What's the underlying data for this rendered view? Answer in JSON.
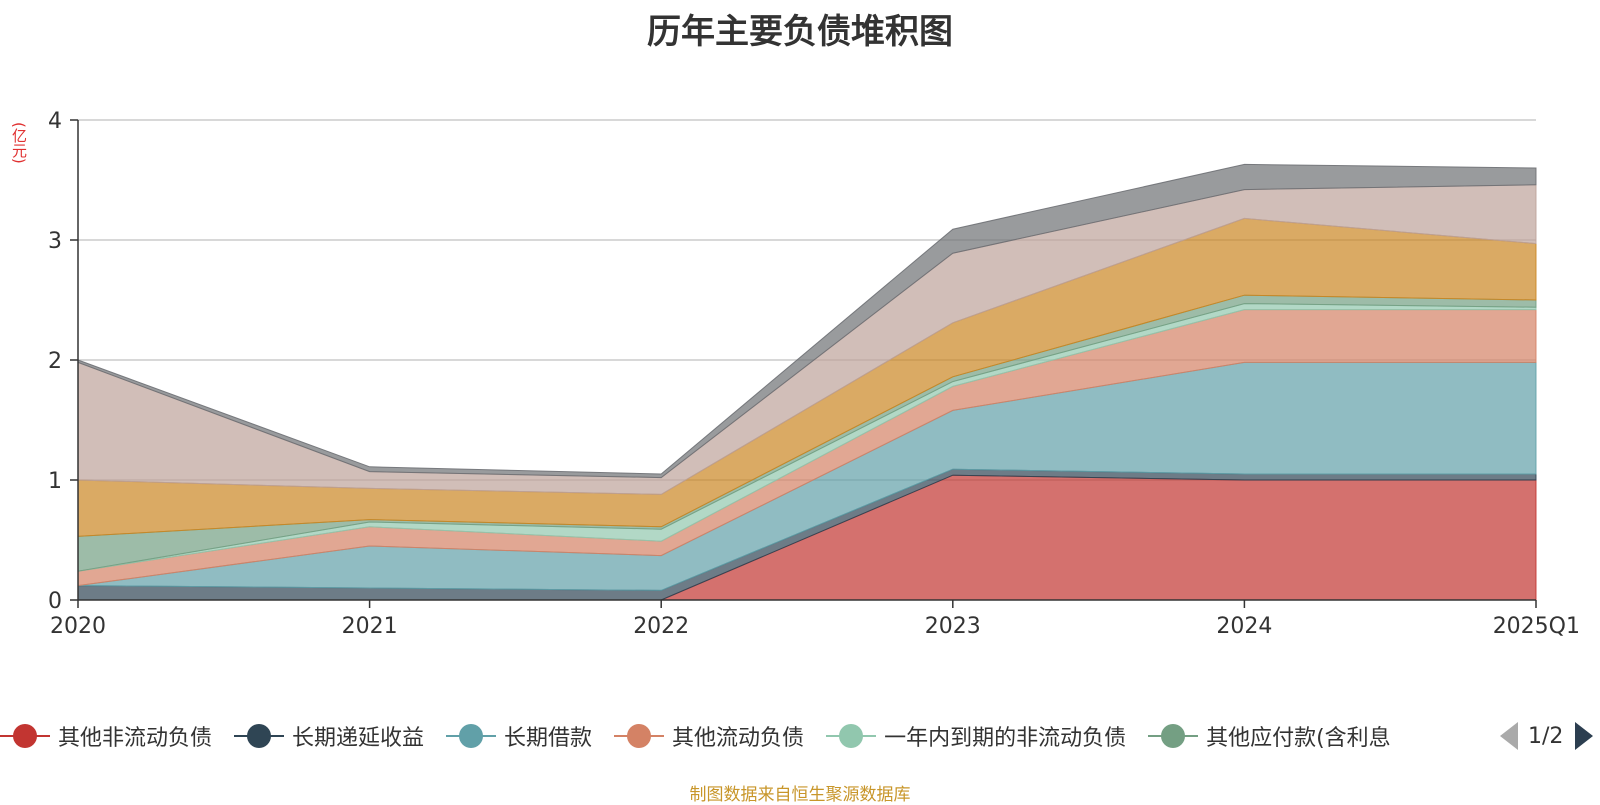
{
  "chart_data": {
    "type": "area",
    "stacked": true,
    "title": "历年主要负债堆积图",
    "unit_label": "(亿元)",
    "categories": [
      "2020",
      "2021",
      "2022",
      "2023",
      "2024",
      "2025Q1"
    ],
    "ylim": [
      0,
      4
    ],
    "yticks": [
      "0",
      "1",
      "2",
      "3",
      "4"
    ],
    "grid": true,
    "legend_position": "bottom",
    "series": [
      {
        "name": "其他非流动负债",
        "color": "#c23531",
        "values": [
          0,
          0,
          0,
          1.04,
          1.0,
          1.0
        ]
      },
      {
        "name": "长期递延收益",
        "color": "#2f4554",
        "values": [
          0.12,
          0.1,
          0.08,
          0.05,
          0.05,
          0.05
        ]
      },
      {
        "name": "长期借款",
        "color": "#61a0a8",
        "values": [
          0,
          0.35,
          0.29,
          0.49,
          0.93,
          0.93
        ]
      },
      {
        "name": "其他流动负债",
        "color": "#d48265",
        "values": [
          0.12,
          0.16,
          0.12,
          0.2,
          0.44,
          0.44
        ]
      },
      {
        "name": "一年内到期的非流动负债",
        "color": "#91c7ae",
        "values": [
          0,
          0.04,
          0.1,
          0.04,
          0.05,
          0.02
        ]
      },
      {
        "name": "其他应付款(含利息",
        "color": "#749f83",
        "values": [
          0.29,
          0.02,
          0.02,
          0.04,
          0.07,
          0.06
        ]
      },
      {
        "name": "",
        "color": "#ca8622",
        "values": [
          0.47,
          0.26,
          0.27,
          0.45,
          0.64,
          0.47
        ]
      },
      {
        "name": "",
        "color": "#bda29a",
        "values": [
          0.98,
          0.14,
          0.14,
          0.58,
          0.24,
          0.49
        ]
      },
      {
        "name": "",
        "color": "#6e7074",
        "values": [
          0.02,
          0.04,
          0.03,
          0.2,
          0.21,
          0.14
        ]
      }
    ]
  },
  "legend": {
    "visible_count": 6,
    "page_text": "1/2"
  },
  "source_text": "制图数据来自恒生聚源数据库"
}
